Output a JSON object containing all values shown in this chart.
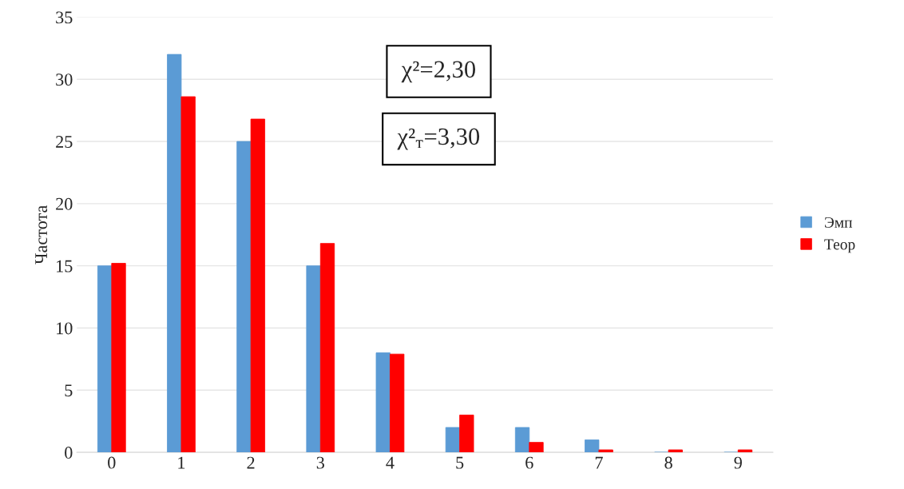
{
  "chart_data": {
    "type": "bar",
    "ylabel": "Частота",
    "categories": [
      "0",
      "1",
      "2",
      "3",
      "4",
      "5",
      "6",
      "7",
      "8",
      "9"
    ],
    "series": [
      {
        "name": "Эмп",
        "color": "#5b9bd5",
        "values": [
          15,
          32,
          25,
          15,
          8,
          2,
          2,
          1,
          0,
          0
        ]
      },
      {
        "name": "Теор",
        "color": "#ff0000",
        "values": [
          15.2,
          28.6,
          26.8,
          16.8,
          7.9,
          3.0,
          0.8,
          0.2,
          0.2,
          0.2
        ]
      }
    ],
    "ylim": [
      0,
      35
    ],
    "yticks": [
      0,
      5,
      10,
      15,
      20,
      25,
      30,
      35
    ],
    "grid": "y",
    "legend": "right",
    "annotations": [
      "χ²=2,30",
      "χ²$_{т}$=3,30"
    ]
  }
}
